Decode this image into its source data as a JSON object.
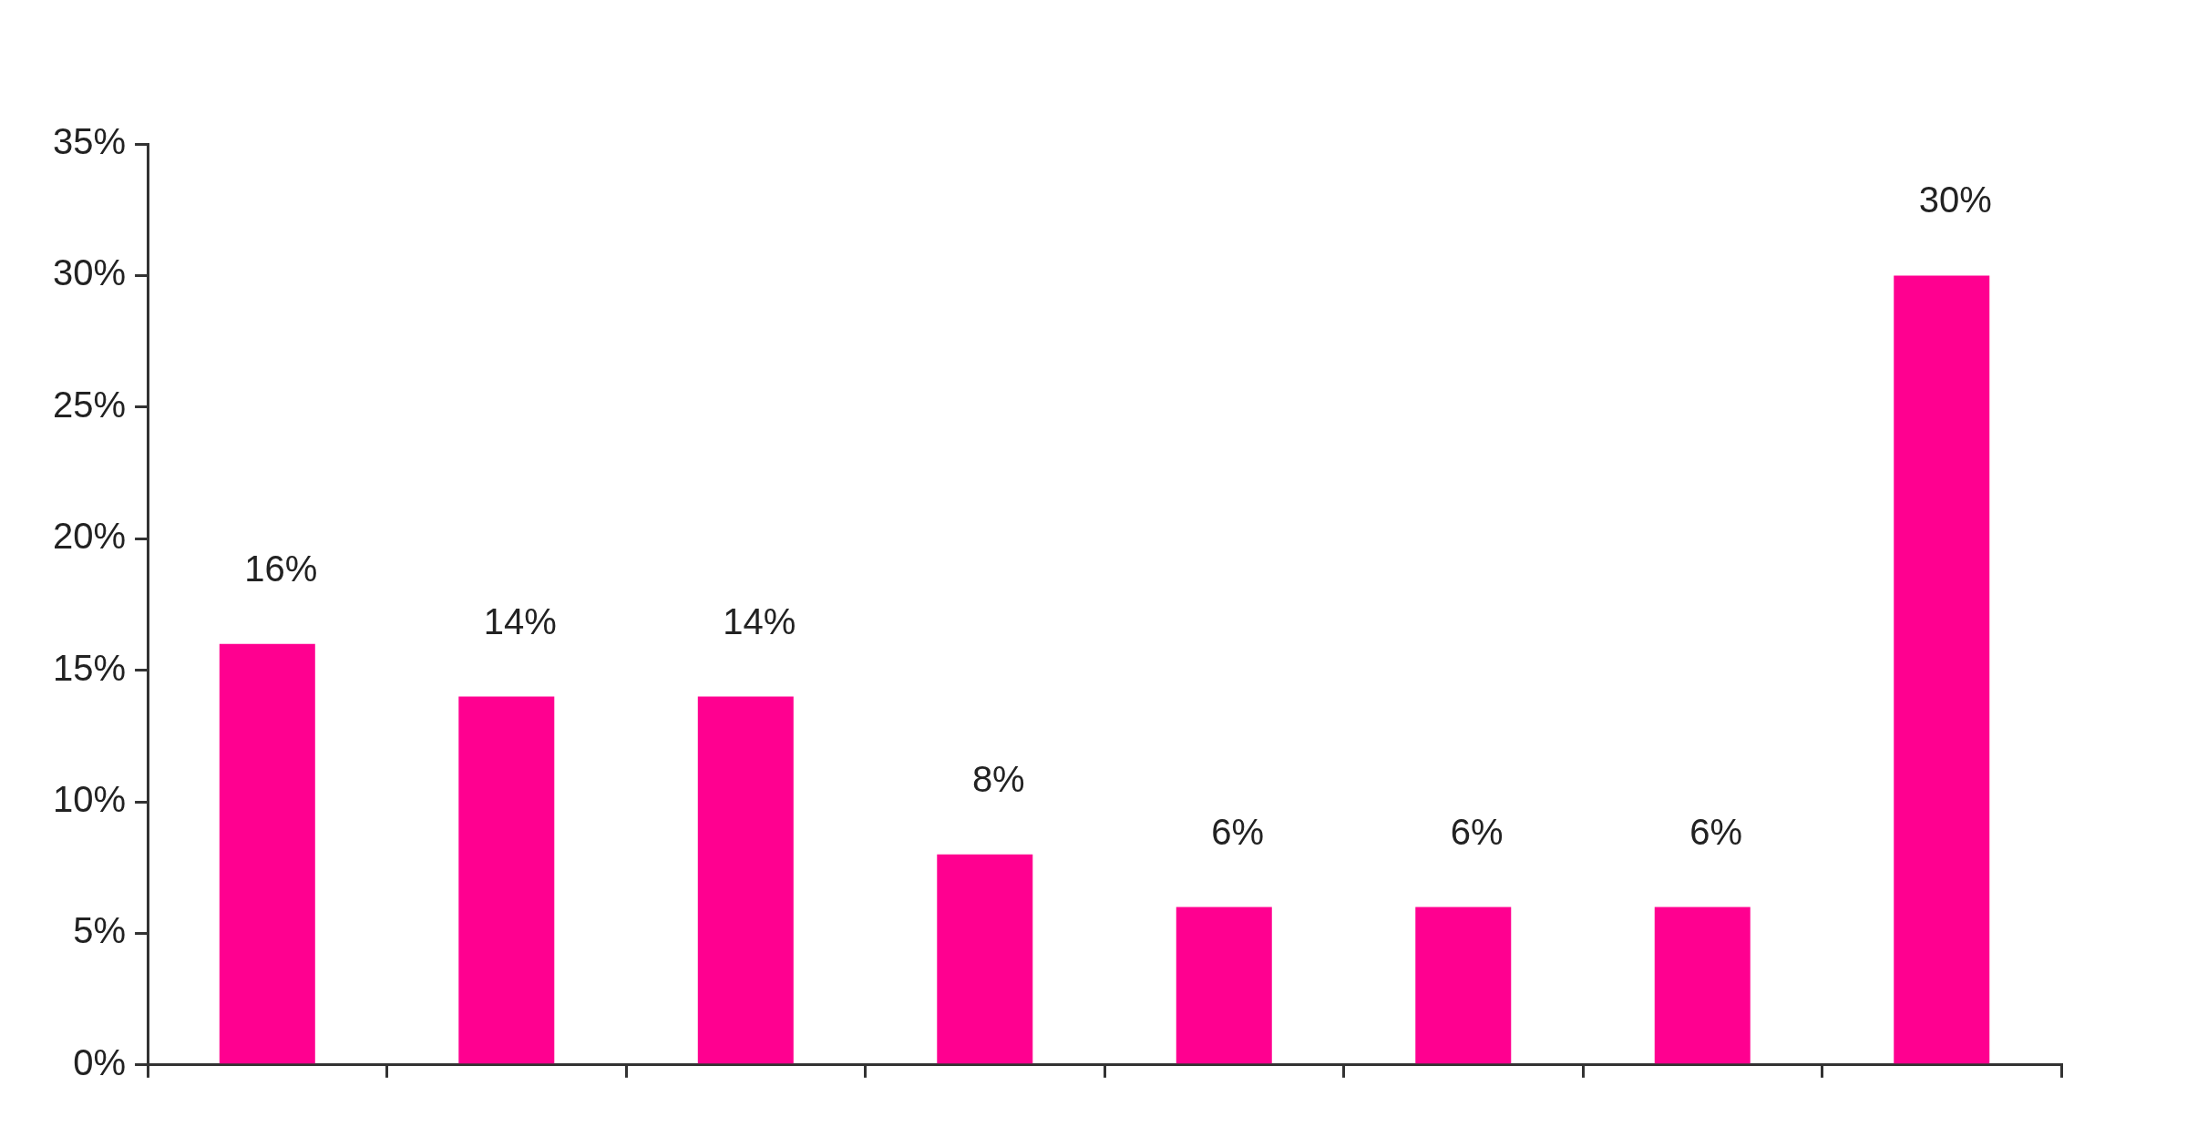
{
  "chart_data": {
    "type": "bar",
    "categories": [
      null,
      null,
      null,
      null,
      null,
      null,
      null,
      null
    ],
    "values": [
      16,
      14,
      14,
      8,
      6,
      6,
      6,
      30
    ],
    "color": "#ff0090",
    "value_labels": [
      "16%",
      "14%",
      "14%",
      "8%",
      "6%",
      "6%",
      "6%",
      "30%"
    ],
    "ylim": [
      0,
      35
    ],
    "yticks": [
      {
        "value": 0,
        "label": "0%"
      },
      {
        "value": 5,
        "label": "5%"
      },
      {
        "value": 10,
        "label": "10%"
      },
      {
        "value": 15,
        "label": "15%"
      },
      {
        "value": 20,
        "label": "20%"
      },
      {
        "value": 25,
        "label": "25%"
      },
      {
        "value": 30,
        "label": "30%"
      },
      {
        "value": 35,
        "label": "35%"
      }
    ],
    "grid": false,
    "legend": false
  }
}
